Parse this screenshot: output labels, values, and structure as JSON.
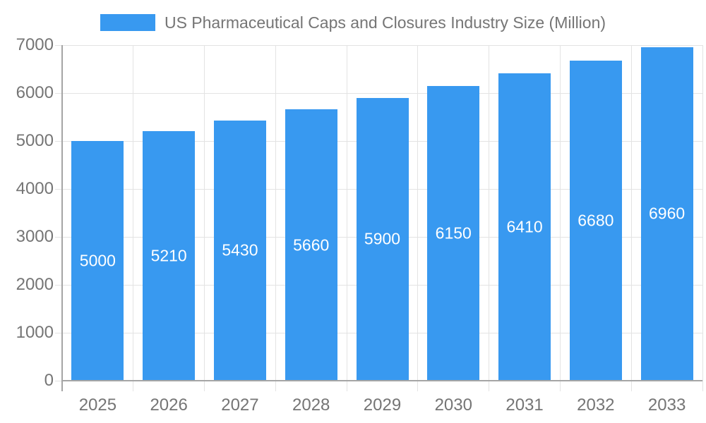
{
  "legend": {
    "label": "US Pharmaceutical Caps and Closures Industry Size (Million)"
  },
  "chart_data": {
    "type": "bar",
    "title": "US Pharmaceutical Caps and Closures Industry Size (Million)",
    "categories": [
      "2025",
      "2026",
      "2027",
      "2028",
      "2029",
      "2030",
      "2031",
      "2032",
      "2033"
    ],
    "values": [
      5000,
      5210,
      5430,
      5660,
      5900,
      6150,
      6410,
      6680,
      6960
    ],
    "xlabel": "",
    "ylabel": "",
    "ylim": [
      0,
      7000
    ],
    "yticks": [
      0,
      1000,
      2000,
      3000,
      4000,
      5000,
      6000,
      7000
    ],
    "grid": true,
    "legend_position": "top",
    "value_labels": "inside-center"
  },
  "colors": {
    "bar": "#3899F0",
    "axis_text": "#757575",
    "value_label": "#FFFFFF",
    "grid_line": "#E3E3E3",
    "axis_line": "#A5A5A5",
    "background": "#FFFFFF"
  }
}
